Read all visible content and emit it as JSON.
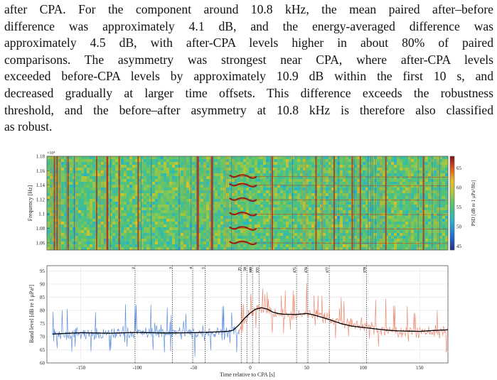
{
  "paragraph": {
    "lines": [
      "after CPA. For the component around 10.8 kHz, the mean paired after–before",
      "difference was approximately 4.1 dB, and the energy-averaged difference was",
      "approximately 4.5 dB, with after-CPA levels higher in about 80% of paired",
      "comparisons. The asymmetry was strongest near CPA, where after-CPA levels",
      "exceeded before-CPA levels by approximately 10.9 dB within the first 10 s, and",
      "decreased gradually at larger time offsets. This difference exceeds the robustness",
      "threshold, and the before–after asymmetry at 10.8 kHz is therefore also classified",
      "as robust."
    ]
  },
  "chart_data": [
    {
      "type": "heatmap",
      "ylabel": "Frequency [Hz]",
      "y_multiplier": "×10⁴",
      "yticks": [
        "1.18",
        "1.16",
        "1.14",
        "1.12",
        "1.1",
        "1.08",
        "1.06"
      ],
      "ylim": [
        10500,
        11800
      ],
      "colorbar": {
        "label": "PSD [dB re 1 μPa²/Hz]",
        "ticks": [
          "65",
          "60",
          "55",
          "50",
          "45"
        ],
        "range": [
          44,
          68
        ]
      },
      "tonal_bands_hz": [
        11520,
        11400,
        11200,
        11000,
        10800,
        10600
      ]
    },
    {
      "type": "line",
      "xlabel": "Time relative to CPA [s]",
      "ylabel": "Band level [dB re 1 μPa²]",
      "xticks": [
        "-150",
        "-100",
        "-50",
        "0",
        "50",
        "100",
        "150"
      ],
      "yticks": [
        "95",
        "90",
        "85",
        "80",
        "75",
        "70",
        "65",
        "60"
      ],
      "xlim": [
        -180,
        175
      ],
      "ylim": [
        60,
        97
      ],
      "markers": [
        {
          "label": "2",
          "x": -102
        },
        {
          "label": "3",
          "x": -69
        },
        {
          "label": "4",
          "x": -51
        },
        {
          "label": "5",
          "x": -40
        },
        {
          "label": "25",
          "x": -8
        },
        {
          "label": "50",
          "x": -3
        },
        {
          "label": "100",
          "x": 2
        },
        {
          "label": "155",
          "x": 8
        },
        {
          "label": "175",
          "x": 41
        },
        {
          "label": "176",
          "x": 51
        },
        {
          "label": "177",
          "x": 70
        },
        {
          "label": "178",
          "x": 103
        }
      ],
      "series": [
        {
          "color": "#3a78d8",
          "x": [
            -175,
            -150,
            -125,
            -100,
            -75,
            -50,
            -25,
            -10
          ],
          "values": [
            71,
            71,
            71,
            71.5,
            71.5,
            71.5,
            71.5,
            72
          ]
        },
        {
          "color": "#e8765a",
          "x": [
            -10,
            0,
            10,
            20,
            30,
            40,
            50,
            60,
            75,
            100,
            125,
            150,
            175
          ],
          "values": [
            72,
            79,
            81,
            79,
            78,
            78,
            79,
            78,
            76,
            74,
            72,
            72,
            72
          ]
        },
        {
          "color": "#000000",
          "x": [
            -175,
            -150,
            -125,
            -100,
            -75,
            -50,
            -30,
            -20,
            -15,
            -10,
            -5,
            0,
            5,
            10,
            15,
            20,
            25,
            30,
            35,
            40,
            45,
            50,
            55,
            60,
            70,
            80,
            90,
            100,
            110,
            120,
            130,
            140,
            150,
            160,
            170,
            175
          ],
          "values": [
            71,
            71.5,
            71.3,
            71.6,
            71.4,
            71.5,
            71.8,
            72,
            72.5,
            74.5,
            77,
            79,
            80.5,
            81,
            80.5,
            79.3,
            78.8,
            78.5,
            78.5,
            78.4,
            78.6,
            78.8,
            78.4,
            77.8,
            76.5,
            75,
            74,
            73.5,
            73,
            72.5,
            72.2,
            72.1,
            72,
            72.3,
            72.5,
            72.6
          ]
        }
      ]
    }
  ]
}
